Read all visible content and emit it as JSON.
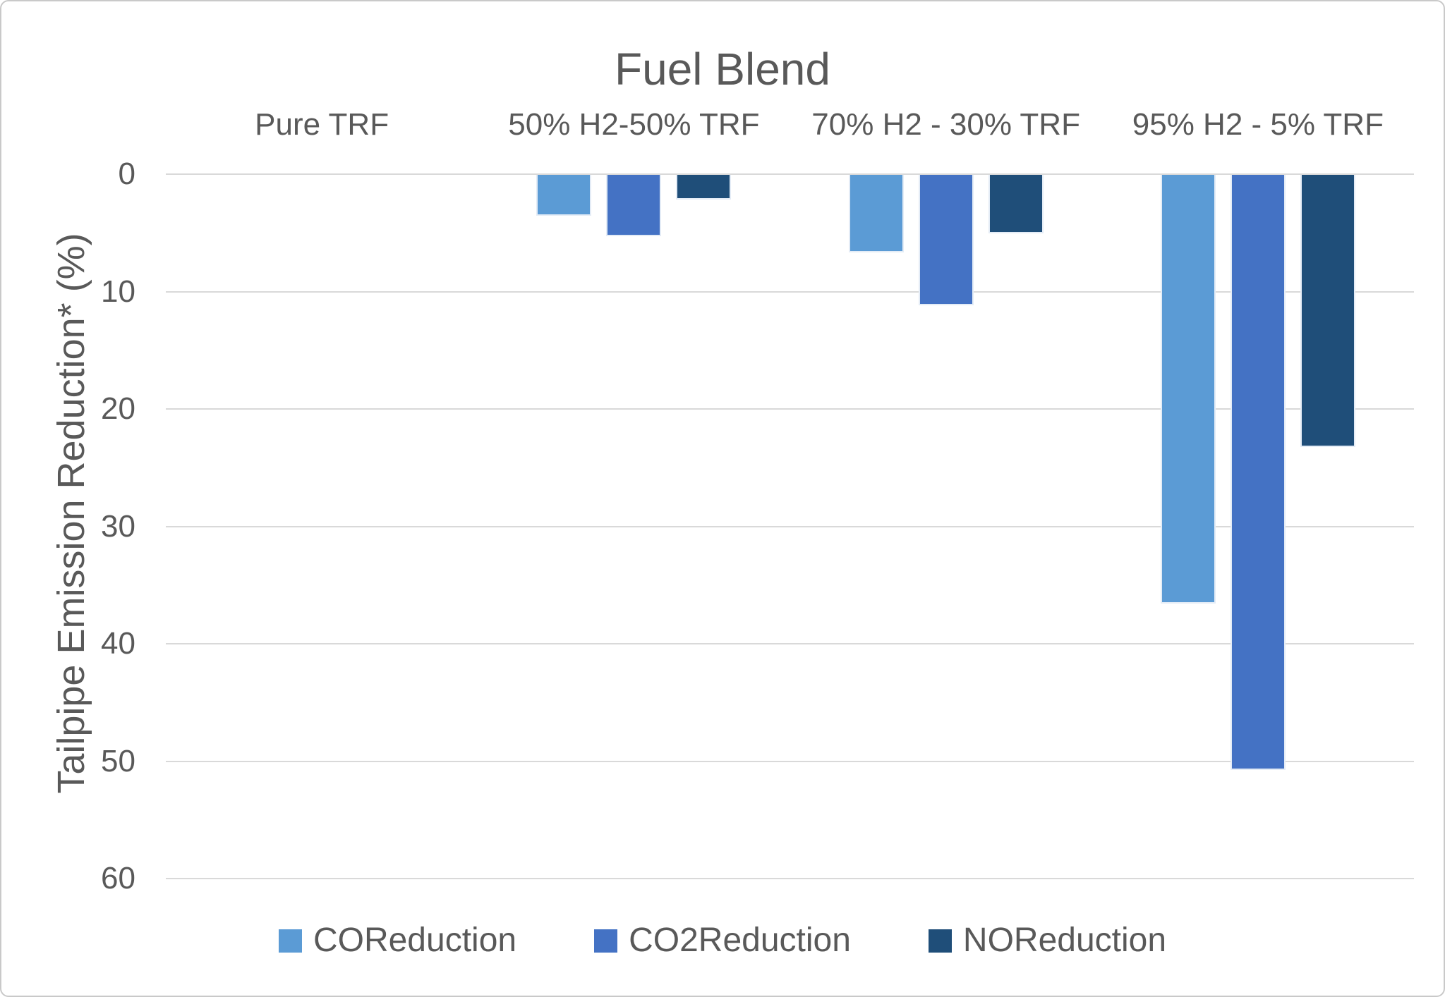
{
  "title": "Fuel Blend",
  "y_axis": {
    "title": "Tailpipe Emission Reduction* (%)",
    "ticks": [
      "0",
      "10",
      "20",
      "30",
      "40",
      "50",
      "60"
    ],
    "max": 60
  },
  "categories": [
    "Pure TRF",
    "50% H2-50% TRF",
    "70% H2 - 30% TRF",
    "95% H2 - 5% TRF"
  ],
  "legend": {
    "items": [
      {
        "label": "COReduction",
        "color": "#5B9BD5"
      },
      {
        "label": "CO2Reduction",
        "color": "#4472C4"
      },
      {
        "label": "NOReduction",
        "color": "#1F4E79"
      }
    ]
  },
  "colors": {
    "text": "#595959",
    "gridline": "#D9D9D9",
    "frame": "#C9C9C9",
    "series_co": "#5B9BD5",
    "series_co2": "#4472C4",
    "series_no": "#1F4E79"
  },
  "chart_data": {
    "type": "bar",
    "title": "Fuel Blend",
    "xlabel": "Fuel Blend",
    "ylabel": "Tailpipe Emission Reduction* (%)",
    "categories": [
      "Pure TRF",
      "50% H2-50% TRF",
      "70% H2 - 30% TRF",
      "95% H2 - 5% TRF"
    ],
    "series": [
      {
        "name": "COReduction",
        "color": "#5B9BD5",
        "values": [
          0,
          3.5,
          6.6,
          36.5
        ]
      },
      {
        "name": "CO2Reduction",
        "color": "#4472C4",
        "values": [
          0,
          5.2,
          11.1,
          50.7
        ]
      },
      {
        "name": "NOReduction",
        "color": "#1F4E79",
        "values": [
          0,
          2.1,
          5.0,
          23.2
        ]
      }
    ],
    "value_unit": "percent reduction",
    "ylim": [
      0,
      60
    ],
    "y_axis_inverted": true,
    "bars_direction": "downward",
    "grid": true,
    "legend_position": "bottom"
  }
}
